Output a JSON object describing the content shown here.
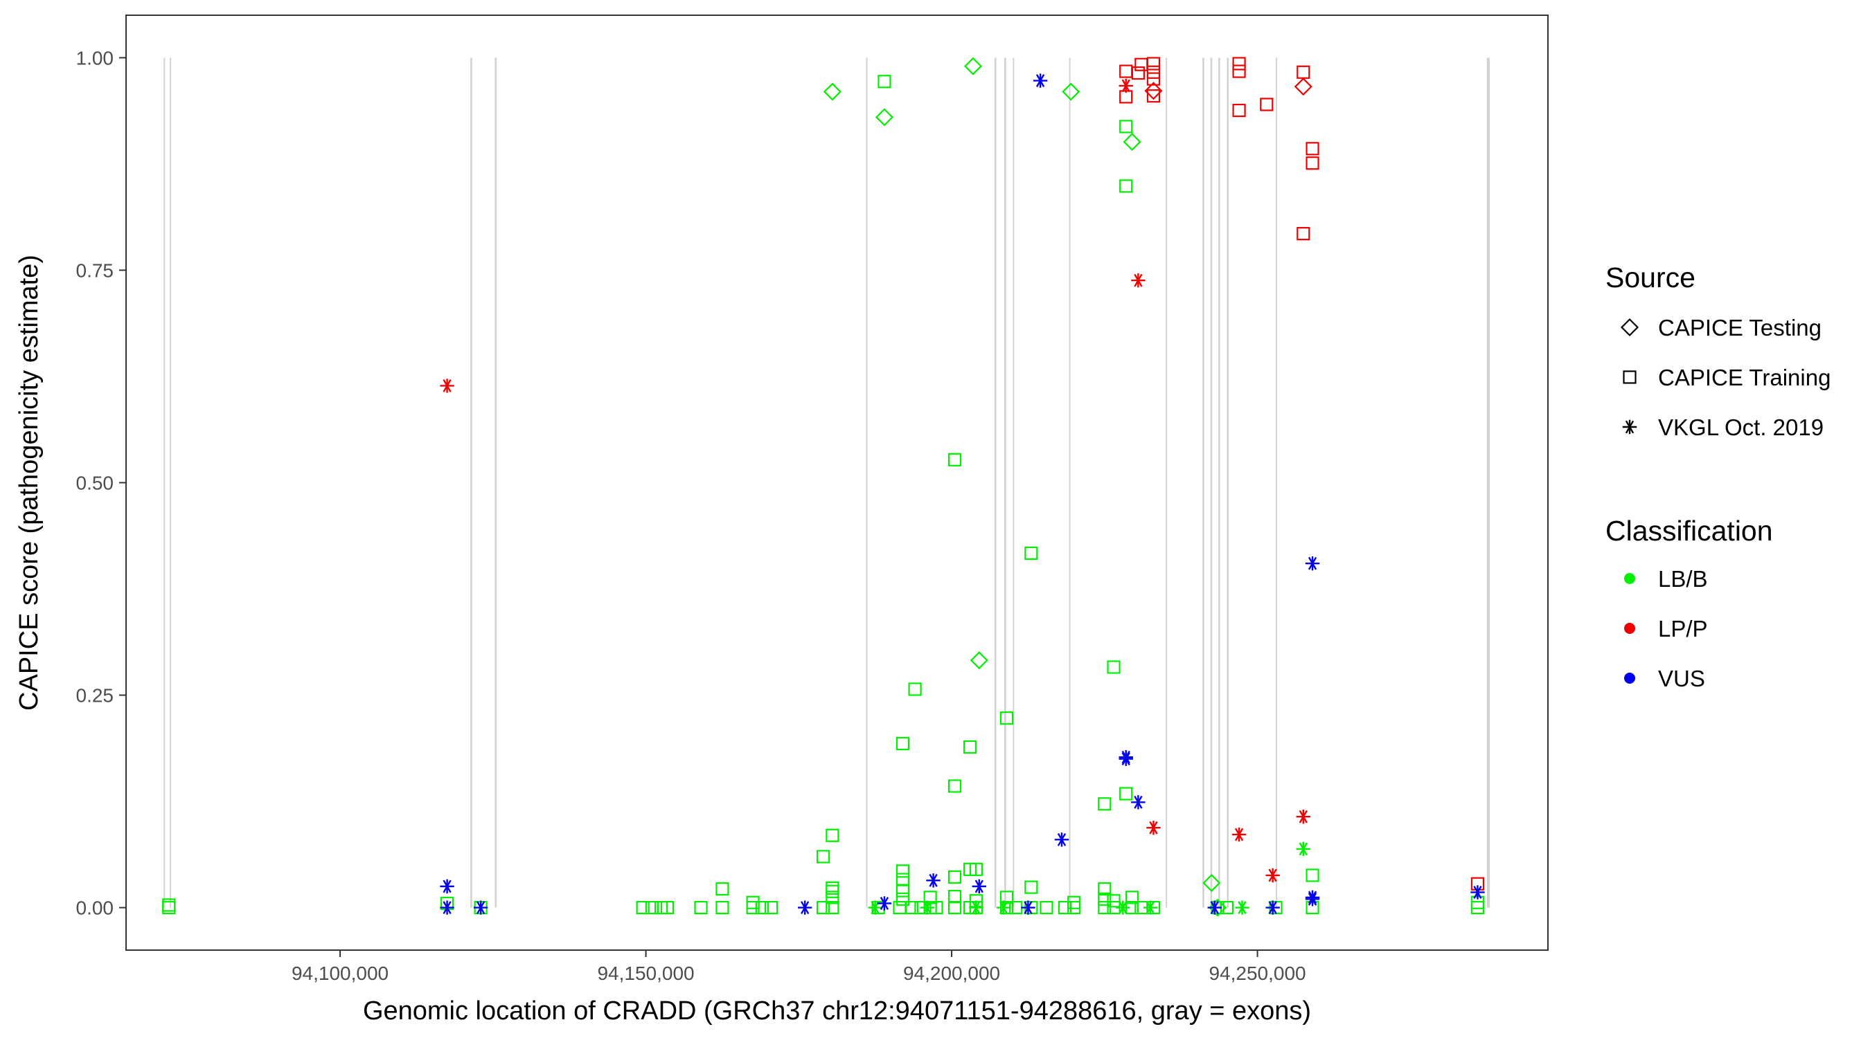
{
  "chart_data": {
    "type": "scatter",
    "xlabel": "Genomic location of CRADD (GRCh37 chr12:94071151-94288616, gray = exons)",
    "ylabel": "CAPICE score (pathogenicity estimate)",
    "xlim": [
      94065000,
      94297500
    ],
    "ylim": [
      -0.05,
      1.05
    ],
    "x_ticks": [
      94100000,
      94150000,
      94200000,
      94250000
    ],
    "x_tick_labels": [
      "94,100,000",
      "94,150,000",
      "94,200,000",
      "94,250,000"
    ],
    "y_ticks": [
      0,
      0.25,
      0.5,
      0.75,
      1.0
    ],
    "y_tick_labels": [
      "0.00",
      "0.25",
      "0.50",
      "0.75",
      "1.00"
    ],
    "exons": [
      [
        94071150,
        94071250
      ],
      [
        94072150,
        94072250
      ],
      [
        94121300,
        94121600
      ],
      [
        94125300,
        94125600
      ],
      [
        94186000,
        94186100
      ],
      [
        94207000,
        94207300
      ],
      [
        94208600,
        94208900
      ],
      [
        94210000,
        94210200
      ],
      [
        94219200,
        94219300
      ],
      [
        94235000,
        94235100
      ],
      [
        94241000,
        94241300
      ],
      [
        94242300,
        94242600
      ],
      [
        94243600,
        94243900
      ],
      [
        94245000,
        94245300
      ],
      [
        94253000,
        94253100
      ],
      [
        94287500,
        94288000
      ]
    ],
    "legend": {
      "source_title": "Source",
      "source_items": [
        {
          "label": "CAPICE Testing",
          "shape": "diamond"
        },
        {
          "label": "CAPICE Training",
          "shape": "square"
        },
        {
          "label": "VKGL Oct. 2019",
          "shape": "asterisk"
        }
      ],
      "class_title": "Classification",
      "class_items": [
        {
          "label": "LB/B",
          "color": "#00ee00"
        },
        {
          "label": "LP/P",
          "color": "#ee0000"
        },
        {
          "label": "VUS",
          "color": "#0000ee"
        }
      ]
    },
    "series": [
      {
        "name": "LB/B - CAPICE Training",
        "shape": "square",
        "color": "#00ee00",
        "points": [
          [
            94072000,
            0.003
          ],
          [
            94072000,
            0.0
          ],
          [
            94117500,
            0.005
          ],
          [
            94123000,
            0.0
          ],
          [
            94149500,
            0.0
          ],
          [
            94151000,
            0.0
          ],
          [
            94152500,
            0.0
          ],
          [
            94153500,
            0.0
          ],
          [
            94159000,
            0.0
          ],
          [
            94162500,
            0.0
          ],
          [
            94162500,
            0.022
          ],
          [
            94167500,
            0.0
          ],
          [
            94167500,
            0.006
          ],
          [
            94169000,
            0.0
          ],
          [
            94170500,
            0.0
          ],
          [
            94179000,
            0.0
          ],
          [
            94179000,
            0.06
          ],
          [
            94180500,
            0.0
          ],
          [
            94180500,
            0.012
          ],
          [
            94180500,
            0.019
          ],
          [
            94180500,
            0.023
          ],
          [
            94180500,
            0.085
          ],
          [
            94188000,
            0.0
          ],
          [
            94189000,
            0.972
          ],
          [
            94191500,
            0.0
          ],
          [
            94192000,
            0.193
          ],
          [
            94192000,
            0.01
          ],
          [
            94192000,
            0.02
          ],
          [
            94192000,
            0.033
          ],
          [
            94192000,
            0.043
          ],
          [
            94193500,
            0.0
          ],
          [
            94194000,
            0.257
          ],
          [
            94195000,
            0.0
          ],
          [
            94196500,
            0.0
          ],
          [
            94196500,
            0.012
          ],
          [
            94197500,
            0.0
          ],
          [
            94200500,
            0.527
          ],
          [
            94200500,
            0.143
          ],
          [
            94200500,
            0.036
          ],
          [
            94200500,
            0.0
          ],
          [
            94200500,
            0.013
          ],
          [
            94203000,
            0.189
          ],
          [
            94203000,
            0.045
          ],
          [
            94203000,
            0.0
          ],
          [
            94204000,
            0.045
          ],
          [
            94204000,
            0.008
          ],
          [
            94204000,
            0.0
          ],
          [
            94209000,
            0.223
          ],
          [
            94209000,
            0.012
          ],
          [
            94209000,
            0.0
          ],
          [
            94210500,
            0.0
          ],
          [
            94213000,
            0.417
          ],
          [
            94213000,
            0.024
          ],
          [
            94213000,
            0.0
          ],
          [
            94215500,
            0.0
          ],
          [
            94218500,
            0.0
          ],
          [
            94220000,
            0.006
          ],
          [
            94220000,
            0.0
          ],
          [
            94225000,
            0.122
          ],
          [
            94225000,
            0.022
          ],
          [
            94225000,
            0.01
          ],
          [
            94225000,
            0.0
          ],
          [
            94226500,
            0.283
          ],
          [
            94226500,
            0.008
          ],
          [
            94226500,
            0.0
          ],
          [
            94228500,
            0.919
          ],
          [
            94228500,
            0.849
          ],
          [
            94228500,
            0.134
          ],
          [
            94229500,
            0.012
          ],
          [
            94229500,
            0.0
          ],
          [
            94231000,
            0.0
          ],
          [
            94233000,
            0.0
          ],
          [
            94243500,
            0.0
          ],
          [
            94245000,
            0.0
          ],
          [
            94253000,
            0.0
          ],
          [
            94259000,
            0.038
          ],
          [
            94259000,
            0.0
          ],
          [
            94286000,
            0.006
          ],
          [
            94286000,
            0.0
          ]
        ]
      },
      {
        "name": "LB/B - CAPICE Testing",
        "shape": "diamond",
        "color": "#00ee00",
        "points": [
          [
            94180500,
            0.96
          ],
          [
            94189000,
            0.93
          ],
          [
            94203500,
            0.99
          ],
          [
            94204500,
            0.291
          ],
          [
            94219500,
            0.96
          ],
          [
            94229500,
            0.901
          ],
          [
            94242500,
            0.029
          ],
          [
            94243500,
            0.0
          ]
        ]
      },
      {
        "name": "LB/B - VKGL Oct. 2019",
        "shape": "asterisk",
        "color": "#00ee00",
        "points": [
          [
            94187500,
            0.0
          ],
          [
            94196000,
            0.0
          ],
          [
            94204000,
            0.0
          ],
          [
            94208500,
            0.0
          ],
          [
            94228000,
            0.0
          ],
          [
            94232500,
            0.0
          ],
          [
            94247500,
            0.0
          ],
          [
            94257500,
            0.069
          ]
        ]
      },
      {
        "name": "LP/P - CAPICE Training",
        "shape": "square",
        "color": "#ee0000",
        "points": [
          [
            94228500,
            0.984
          ],
          [
            94228500,
            0.954
          ],
          [
            94230500,
            0.982
          ],
          [
            94231000,
            0.992
          ],
          [
            94233000,
            0.993
          ],
          [
            94233000,
            0.983
          ],
          [
            94233000,
            0.975
          ],
          [
            94233000,
            0.955
          ],
          [
            94247000,
            0.993
          ],
          [
            94247000,
            0.984
          ],
          [
            94247000,
            0.938
          ],
          [
            94251500,
            0.945
          ],
          [
            94257500,
            0.983
          ],
          [
            94257500,
            0.793
          ],
          [
            94259000,
            0.893
          ],
          [
            94259000,
            0.876
          ],
          [
            94286000,
            0.028
          ]
        ]
      },
      {
        "name": "LP/P - CAPICE Testing",
        "shape": "diamond",
        "color": "#ee0000",
        "points": [
          [
            94233000,
            0.961
          ],
          [
            94257500,
            0.966
          ]
        ]
      },
      {
        "name": "LP/P - VKGL Oct. 2019",
        "shape": "asterisk",
        "color": "#ee0000",
        "points": [
          [
            94117500,
            0.614
          ],
          [
            94228500,
            0.967
          ],
          [
            94230500,
            0.738
          ],
          [
            94233000,
            0.094
          ],
          [
            94247000,
            0.086
          ],
          [
            94252500,
            0.038
          ],
          [
            94257500,
            0.107
          ]
        ]
      },
      {
        "name": "VUS - VKGL Oct. 2019",
        "shape": "asterisk",
        "color": "#0000ee",
        "points": [
          [
            94117500,
            0.025
          ],
          [
            94117500,
            0.0
          ],
          [
            94123000,
            0.0
          ],
          [
            94176000,
            0.0
          ],
          [
            94189000,
            0.005
          ],
          [
            94197000,
            0.032
          ],
          [
            94204500,
            0.025
          ],
          [
            94212500,
            0.0
          ],
          [
            94214500,
            0.973
          ],
          [
            94218000,
            0.08
          ],
          [
            94228500,
            0.177
          ],
          [
            94228500,
            0.175
          ],
          [
            94230500,
            0.124
          ],
          [
            94243000,
            0.0
          ],
          [
            94252500,
            0.0
          ],
          [
            94259000,
            0.405
          ],
          [
            94259000,
            0.012
          ],
          [
            94259000,
            0.01
          ],
          [
            94286000,
            0.018
          ]
        ]
      }
    ]
  }
}
